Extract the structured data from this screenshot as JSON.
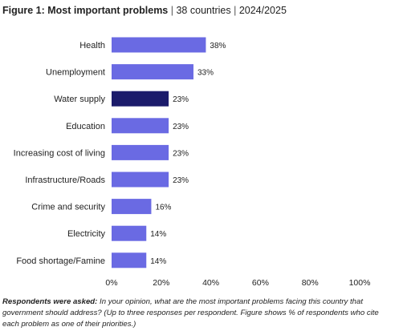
{
  "figure": {
    "label": "Figure 1: Most important problems",
    "countries": "38 countries",
    "period": "2024/2025",
    "separator": "|"
  },
  "chart_data": {
    "type": "bar",
    "orientation": "horizontal",
    "categories": [
      "Health",
      "Unemployment",
      "Water supply",
      "Education",
      "Increasing cost of living",
      "Infrastructure/Roads",
      "Crime and security",
      "Electricity",
      "Food shortage/Famine"
    ],
    "values": [
      38,
      33,
      23,
      23,
      23,
      23,
      16,
      14,
      14
    ],
    "data_labels": [
      "38%",
      "33%",
      "23%",
      "23%",
      "23%",
      "23%",
      "16%",
      "14%",
      "14%"
    ],
    "highlight_index": 2,
    "xlim": [
      0,
      100
    ],
    "xticks": [
      0,
      20,
      40,
      60,
      80,
      100
    ],
    "xtick_labels": [
      "0%",
      "20%",
      "40%",
      "60%",
      "80%",
      "100%"
    ],
    "grid": false,
    "colors": {
      "bar": "#6a6ae3",
      "highlight": "#1b1b6b"
    }
  },
  "note": {
    "lead": "Respondents were asked:",
    "text": "In your opinion, what are the most important problems facing this country that government should address? (Up to three responses per respondent. Figure shows % of respondents who cite each problem as one of their priorities.)"
  }
}
